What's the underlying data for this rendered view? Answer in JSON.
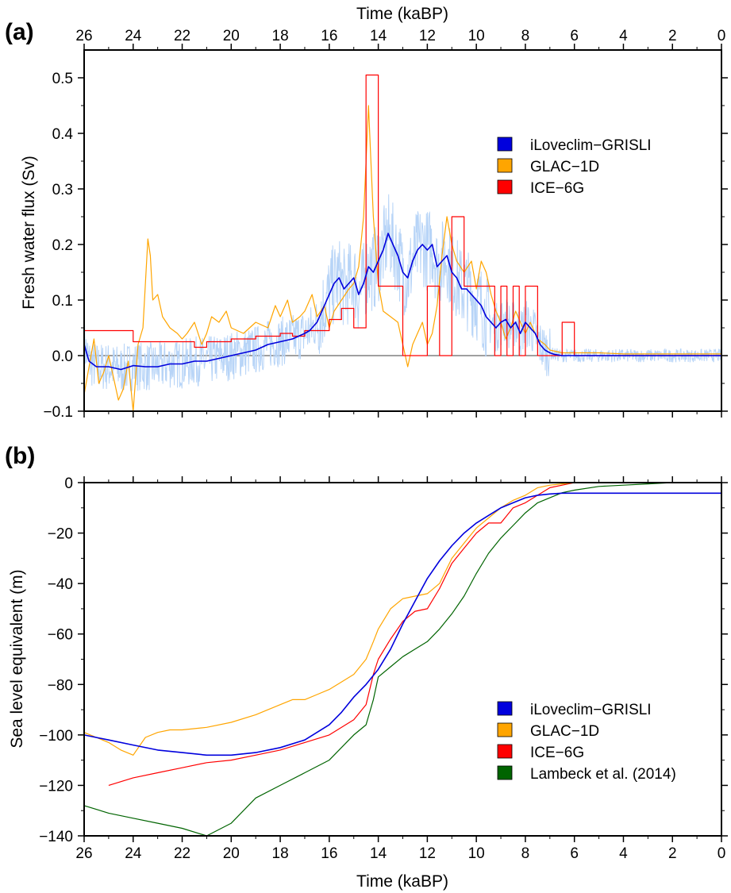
{
  "figure": {
    "panel_a_label": "(a)",
    "panel_b_label": "(b)"
  },
  "colors": {
    "iloveclim": "#0000dd",
    "iloveclim_raw": "#b7d4f7",
    "glac": "#ffa500",
    "ice6g": "#ff0000",
    "lambeck": "#006400"
  },
  "chart_data": [
    {
      "type": "line",
      "panel": "(a)",
      "xlabel": "Time (kaBP)",
      "x_axis_position": "top",
      "ylabel": "Fresh water flux (Sv)",
      "xlim": [
        26,
        0
      ],
      "ylim": [
        -0.1,
        0.55
      ],
      "xticks": [
        26,
        24,
        22,
        20,
        18,
        16,
        14,
        12,
        10,
        8,
        6,
        4,
        2,
        0
      ],
      "xtick_labels": [
        "26",
        "24",
        "22",
        "20",
        "18",
        "16",
        "14",
        "12",
        "10",
        "8",
        "6",
        "4",
        "2",
        "0"
      ],
      "yticks": [
        -0.1,
        0.0,
        0.1,
        0.2,
        0.3,
        0.4,
        0.5
      ],
      "ytick_labels": [
        "−0.1",
        "0.0",
        "0.1",
        "0.2",
        "0.3",
        "0.4",
        "0.5"
      ],
      "legend_position": "top-right",
      "legend": [
        "iLoveclim−GRISLI",
        "GLAC−1D",
        "ICE−6G"
      ],
      "series": [
        {
          "name": "iLoveclim−GRISLI",
          "color": "#0000dd",
          "x": [
            26,
            25.8,
            25.5,
            25.2,
            25,
            24.5,
            24,
            23.5,
            23,
            22.5,
            22,
            21.5,
            21,
            20.5,
            20,
            19.5,
            19,
            18.5,
            18,
            17.5,
            17,
            16.8,
            16.5,
            16.3,
            16,
            15.8,
            15.6,
            15.4,
            15.2,
            15,
            14.8,
            14.6,
            14.4,
            14.2,
            14,
            13.8,
            13.6,
            13.4,
            13.2,
            13,
            12.8,
            12.6,
            12.4,
            12.2,
            12,
            11.8,
            11.6,
            11.4,
            11.2,
            11,
            10.8,
            10.6,
            10.4,
            10.2,
            10,
            9.8,
            9.6,
            9.4,
            9.2,
            9,
            8.8,
            8.6,
            8.4,
            8.2,
            8,
            7.8,
            7.6,
            7.4,
            7.2,
            7,
            6.8,
            6.5,
            6,
            5,
            4,
            3,
            2,
            1,
            0
          ],
          "values": [
            0.02,
            -0.01,
            -0.02,
            -0.02,
            -0.02,
            -0.025,
            -0.018,
            -0.02,
            -0.02,
            -0.015,
            -0.015,
            -0.01,
            -0.01,
            -0.005,
            0.0,
            0.005,
            0.01,
            0.02,
            0.025,
            0.03,
            0.04,
            0.045,
            0.06,
            0.08,
            0.11,
            0.13,
            0.14,
            0.12,
            0.13,
            0.14,
            0.11,
            0.13,
            0.16,
            0.15,
            0.17,
            0.19,
            0.22,
            0.2,
            0.18,
            0.15,
            0.14,
            0.17,
            0.19,
            0.2,
            0.19,
            0.2,
            0.16,
            0.17,
            0.18,
            0.15,
            0.14,
            0.12,
            0.12,
            0.11,
            0.1,
            0.09,
            0.07,
            0.06,
            0.05,
            0.06,
            0.065,
            0.05,
            0.06,
            0.04,
            0.06,
            0.05,
            0.04,
            0.02,
            0.01,
            0.005,
            0.002,
            0.0,
            0.0,
            0.0,
            0.0,
            0.0,
            0.0,
            0.0,
            0.0
          ]
        },
        {
          "name": "GLAC−1D",
          "color": "#ffa500",
          "x": [
            26,
            25.8,
            25.6,
            25.4,
            25.2,
            25,
            24.8,
            24.6,
            24.4,
            24.2,
            24.0,
            23.8,
            23.6,
            23.4,
            23.3,
            23.2,
            23.0,
            22.8,
            22.5,
            22.2,
            22.0,
            21.8,
            21.5,
            21.2,
            21.0,
            20.8,
            20.5,
            20.2,
            20.0,
            19.5,
            19.0,
            18.5,
            18.2,
            18.0,
            17.7,
            17.5,
            17.2,
            17.0,
            16.7,
            16.5,
            16.2,
            16.0,
            15.8,
            15.5,
            15.2,
            15.0,
            14.8,
            14.6,
            14.5,
            14.4,
            14.3,
            14.2,
            14.0,
            13.8,
            13.5,
            13.2,
            13.0,
            12.8,
            12.6,
            12.4,
            12.2,
            12.0,
            11.8,
            11.6,
            11.4,
            11.2,
            11.0,
            10.8,
            10.5,
            10.2,
            10.0,
            9.8,
            9.6,
            9.4,
            9.2,
            9.0,
            8.8,
            8.6,
            8.4,
            8.2,
            8.0,
            7.8,
            7.5,
            7.2,
            7.0,
            6.5,
            6.0,
            5.0,
            4.0,
            3.0,
            2.0,
            1.0,
            0
          ],
          "values": [
            -0.07,
            -0.02,
            0.03,
            -0.05,
            -0.03,
            0.0,
            -0.04,
            -0.08,
            -0.06,
            -0.01,
            -0.1,
            0.02,
            0.05,
            0.21,
            0.18,
            0.1,
            0.11,
            0.07,
            0.05,
            0.04,
            0.03,
            0.04,
            0.06,
            0.02,
            0.04,
            0.07,
            0.06,
            0.08,
            0.05,
            0.04,
            0.06,
            0.05,
            0.09,
            0.07,
            0.1,
            0.06,
            0.07,
            0.08,
            0.11,
            0.07,
            0.09,
            0.05,
            0.08,
            0.1,
            0.12,
            0.13,
            0.16,
            0.25,
            0.35,
            0.45,
            0.35,
            0.25,
            0.13,
            0.08,
            0.07,
            0.06,
            0.02,
            -0.02,
            0.02,
            0.04,
            0.06,
            0.02,
            0.04,
            0.09,
            0.18,
            0.25,
            0.2,
            0.17,
            0.15,
            0.17,
            0.12,
            0.17,
            0.15,
            0.11,
            0.08,
            0.06,
            0.03,
            0.05,
            0.08,
            0.06,
            0.04,
            0.06,
            0.03,
            0.02,
            0.01,
            0.005,
            0.005,
            0.005,
            0.003,
            0.003,
            0.003,
            0.003,
            0.003
          ]
        },
        {
          "name": "ICE−6G",
          "color": "#ff0000",
          "step": true,
          "x": [
            26,
            24,
            21.5,
            21,
            20,
            19,
            18,
            17.5,
            17,
            16,
            15.5,
            15,
            14.5,
            14,
            13,
            12,
            11.5,
            11,
            10.5,
            10,
            9.5,
            9.25,
            9,
            8.75,
            8.5,
            8.25,
            8,
            7.5,
            7,
            6.5,
            6,
            0
          ],
          "values": [
            0.045,
            0.025,
            0.015,
            0.025,
            0.03,
            0.035,
            0.04,
            0.035,
            0.045,
            0.065,
            0.085,
            0.05,
            0.505,
            0.125,
            0.0,
            0.125,
            0.0,
            0.25,
            0.125,
            0.125,
            0.125,
            0.0,
            0.125,
            0.0,
            0.125,
            0.0,
            0.125,
            0.0,
            0.0,
            0.06,
            0.0,
            0.0
          ]
        }
      ]
    },
    {
      "type": "line",
      "panel": "(b)",
      "xlabel": "Time (kaBP)",
      "ylabel": "Sea level equivalent (m)",
      "xlim": [
        26,
        0
      ],
      "ylim": [
        -140,
        0
      ],
      "xticks": [
        26,
        24,
        22,
        20,
        18,
        16,
        14,
        12,
        10,
        8,
        6,
        4,
        2,
        0
      ],
      "xtick_labels": [
        "26",
        "24",
        "22",
        "20",
        "18",
        "16",
        "14",
        "12",
        "10",
        "8",
        "6",
        "4",
        "2",
        "0"
      ],
      "yticks": [
        -140,
        -120,
        -100,
        -80,
        -60,
        -40,
        -20,
        0
      ],
      "ytick_labels": [
        "−140",
        "−120",
        "−100",
        "−80",
        "−60",
        "−40",
        "−20",
        "0"
      ],
      "legend_position": "bottom-right",
      "legend": [
        "iLoveclim−GRISLI",
        "GLAC−1D",
        "ICE−6G",
        "Lambeck et al. (2014)"
      ],
      "series": [
        {
          "name": "iLoveclim−GRISLI",
          "color": "#0000dd",
          "x": [
            26,
            25,
            24,
            23,
            22,
            21,
            20,
            19,
            18,
            17,
            16,
            15.5,
            15,
            14.5,
            14,
            13.5,
            13,
            12.5,
            12,
            11.5,
            11,
            10.5,
            10,
            9.5,
            9,
            8.5,
            8,
            7.5,
            7,
            6.5,
            6,
            5,
            4,
            3,
            2,
            1,
            0
          ],
          "values": [
            -100,
            -102,
            -104,
            -106,
            -107,
            -108,
            -108,
            -107,
            -105,
            -102,
            -96,
            -91,
            -85,
            -80,
            -74,
            -66,
            -56,
            -47,
            -38,
            -31,
            -25,
            -20,
            -16,
            -13,
            -10,
            -8,
            -6,
            -5,
            -4.5,
            -4.2,
            -4.2,
            -4.2,
            -4.2,
            -4.2,
            -4.2,
            -4.2,
            -4.2
          ]
        },
        {
          "name": "GLAC−1D",
          "color": "#ffa500",
          "x": [
            26,
            25,
            24.5,
            24,
            23.5,
            23,
            22.5,
            22,
            21,
            20,
            19,
            18.5,
            18,
            17.5,
            17,
            16.5,
            16,
            15.5,
            15,
            14.5,
            14.2,
            14,
            13.5,
            13,
            12.5,
            12,
            11.5,
            11,
            10.5,
            10,
            9.5,
            9,
            8.5,
            8,
            7.5,
            7,
            6.5,
            6,
            5,
            4,
            3,
            2,
            1,
            0
          ],
          "values": [
            -99,
            -103,
            -106,
            -108,
            -101,
            -99,
            -98,
            -98,
            -97,
            -95,
            -92,
            -90,
            -88,
            -86,
            -86,
            -84,
            -82,
            -79,
            -76,
            -70,
            -63,
            -58,
            -50,
            -46,
            -45,
            -44,
            -40,
            -30,
            -24,
            -18,
            -14,
            -10,
            -7,
            -5,
            -2,
            -1,
            -0.5,
            0,
            0,
            0,
            0,
            0,
            0,
            0
          ]
        },
        {
          "name": "ICE−6G",
          "color": "#ff0000",
          "x": [
            25,
            24,
            23,
            22,
            21,
            20,
            19,
            18,
            17,
            16,
            15,
            14.5,
            14.2,
            14,
            13.5,
            13,
            12.5,
            12,
            11.5,
            11,
            10.5,
            10,
            9.5,
            9,
            8.5,
            8,
            7.5,
            7,
            6.5,
            6,
            5,
            4,
            3,
            2,
            1,
            0
          ],
          "values": [
            -120,
            -117,
            -115,
            -113,
            -111,
            -110,
            -108,
            -106,
            -103,
            -100,
            -94,
            -88,
            -76,
            -70,
            -62,
            -55,
            -51,
            -50,
            -42,
            -32,
            -26,
            -20,
            -16,
            -16,
            -10,
            -8,
            -5,
            -2,
            -1,
            0,
            0,
            0,
            0,
            0,
            0,
            0
          ]
        },
        {
          "name": "Lambeck et al. (2014)",
          "color": "#006400",
          "x": [
            26,
            25,
            24,
            23,
            22,
            21,
            20,
            19,
            18,
            17,
            16,
            15,
            14.5,
            14.2,
            14,
            13.5,
            13,
            12.5,
            12,
            11.5,
            11,
            10.5,
            10,
            9.5,
            9,
            8.5,
            8,
            7.5,
            7,
            6.5,
            6,
            5,
            4,
            3,
            2,
            1,
            0
          ],
          "values": [
            -128,
            -131,
            -133,
            -135,
            -137,
            -140,
            -135,
            -125,
            -120,
            -115,
            -110,
            -100,
            -96,
            -86,
            -77,
            -73,
            -69,
            -66,
            -63,
            -58,
            -52,
            -45,
            -36,
            -28,
            -22,
            -17,
            -12,
            -8,
            -6,
            -4,
            -3,
            -1.5,
            -1,
            -0.5,
            0,
            0,
            0
          ]
        }
      ]
    }
  ]
}
